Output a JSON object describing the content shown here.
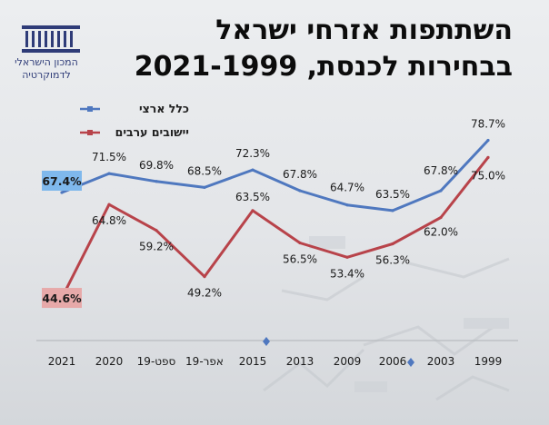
{
  "title_line1": "השתתפות אזרחי ישראל",
  "title_line2": "בבחירות לכנסת, 2021-1999",
  "logo": {
    "caption_line1": "המכון הישראלי",
    "caption_line2": "לדמוקרטיה",
    "icon": "columns-building-icon"
  },
  "legend": [
    {
      "label": "כלל ארצי",
      "color": "#4f78bf"
    },
    {
      "label": "יישובים ערבים",
      "color": "#b8434a"
    }
  ],
  "chart_data": {
    "type": "line",
    "categories": [
      "2021",
      "2020",
      "ספט-19",
      "אפר-19",
      "2015",
      "2013",
      "2009",
      "2006",
      "2003",
      "1999"
    ],
    "series": [
      {
        "name": "כלל ארצי",
        "values": [
          67.4,
          71.5,
          69.8,
          68.5,
          72.3,
          67.8,
          64.7,
          63.5,
          67.8,
          78.7
        ],
        "labels": [
          "67.4%",
          "71.5%",
          "69.8%",
          "68.5%",
          "72.3%",
          "67.8%",
          "64.7%",
          "63.5%",
          "67.8%",
          "78.7%"
        ],
        "color": "#4f78bf"
      },
      {
        "name": "יישובים ערבים",
        "values": [
          44.6,
          64.8,
          59.2,
          49.2,
          63.5,
          56.5,
          53.4,
          56.3,
          62.0,
          75.0
        ],
        "labels": [
          "44.6%",
          "64.8%",
          "59.2%",
          "49.2%",
          "63.5%",
          "56.5%",
          "53.4%",
          "56.3%",
          "62.0%",
          "75.0%"
        ],
        "color": "#b8434a"
      }
    ],
    "highlight_colors": [
      "#7fb8ec",
      "#e7a9a9"
    ],
    "grid": false
  }
}
